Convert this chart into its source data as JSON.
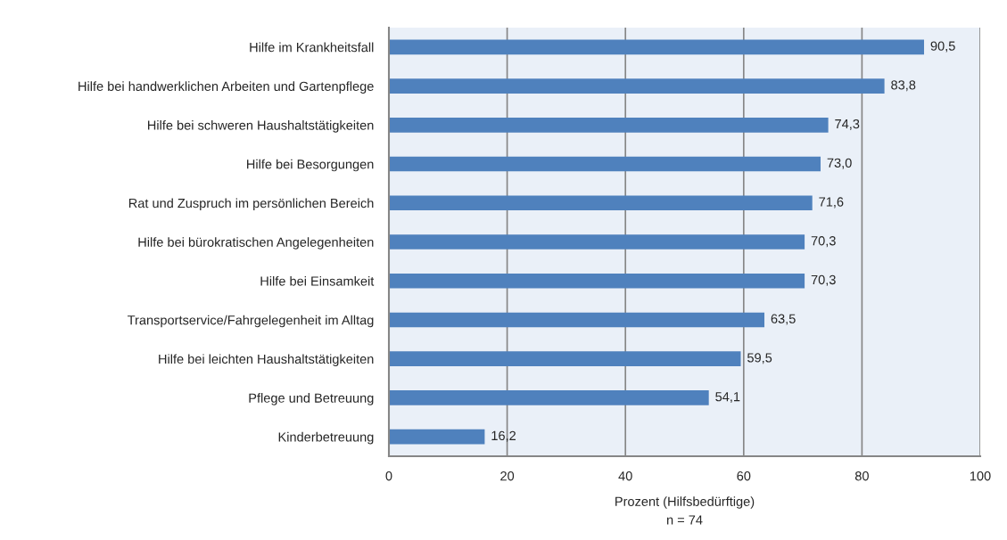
{
  "chart_data": {
    "type": "bar",
    "orientation": "horizontal",
    "categories": [
      "Hilfe im Krankheitsfall",
      "Hilfe bei handwerklichen Arbeiten und Gartenpflege",
      "Hilfe bei schweren Haushaltstätigkeiten",
      "Hilfe bei Besorgungen",
      "Rat und Zuspruch im persönlichen Bereich",
      "Hilfe bei bürokratischen Angelegenheiten",
      "Hilfe bei Einsamkeit",
      "Transportservice/Fahrgelegenheit im Alltag",
      "Hilfe bei leichten Haushaltstätigkeiten",
      "Pflege und Betreuung",
      "Kinderbetreuung"
    ],
    "values": [
      90.5,
      83.8,
      74.3,
      73.0,
      71.6,
      70.3,
      70.3,
      63.5,
      59.5,
      54.1,
      16.2
    ],
    "value_labels": [
      "90,5",
      "83,8",
      "74,3",
      "73,0",
      "71,6",
      "70,3",
      "70,3",
      "63,5",
      "59,5",
      "54,1",
      "16,2"
    ],
    "color": "#4f81bd",
    "xlabel": "Prozent (Hilfsbedürftige)",
    "annotations": [
      "n = 74"
    ],
    "xlim": [
      0,
      100
    ],
    "xticks": [
      0,
      20,
      40,
      60,
      80,
      100
    ],
    "grid": "x"
  }
}
